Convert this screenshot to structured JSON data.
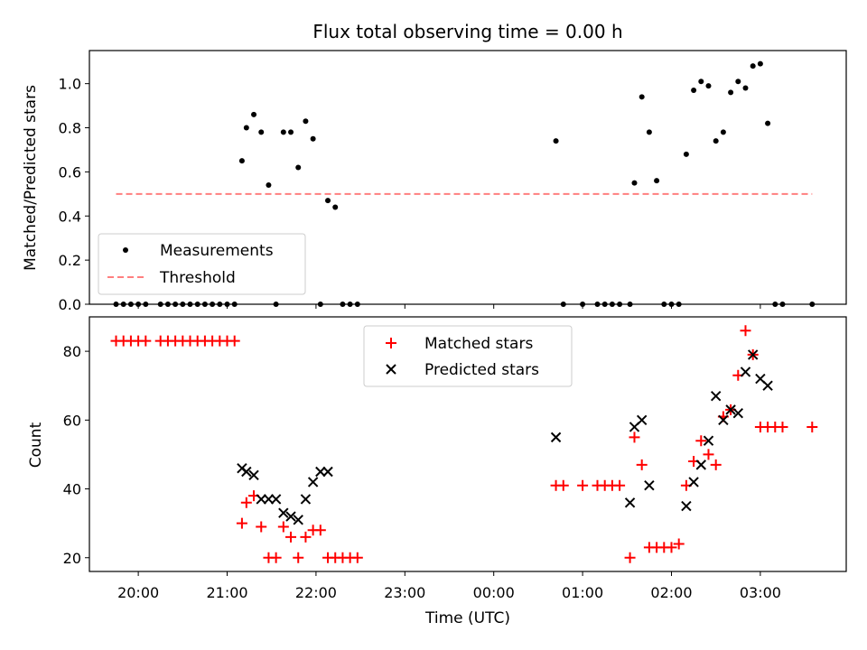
{
  "chart_data": [
    {
      "type": "scatter",
      "title": "Flux total observing time = 0.00 h",
      "xlabel": "",
      "ylabel": "Matched/Predicted stars",
      "xlim": [
        "19:27",
        "03:58"
      ],
      "ylim": [
        0,
        1.15
      ],
      "yticks": [
        "0.0",
        "0.2",
        "0.4",
        "0.6",
        "0.8",
        "1.0"
      ],
      "legend": {
        "position": "lower-left",
        "entries": [
          "Measurements",
          "Threshold"
        ]
      },
      "colors": {
        "measurements": "#000000",
        "threshold": "#ff7f7f"
      },
      "series": [
        {
          "name": "Measurements",
          "x": [
            "19:45",
            "19:50",
            "19:55",
            "20:00",
            "20:05",
            "20:15",
            "20:20",
            "20:25",
            "20:30",
            "20:35",
            "20:40",
            "20:45",
            "20:50",
            "20:55",
            "21:00",
            "21:05",
            "21:10",
            "21:13",
            "21:18",
            "21:23",
            "21:28",
            "21:33",
            "21:38",
            "21:43",
            "21:48",
            "21:53",
            "21:58",
            "22:03",
            "22:08",
            "22:13",
            "22:18",
            "22:23",
            "22:28",
            "00:42",
            "00:47",
            "01:00",
            "01:10",
            "01:15",
            "01:20",
            "01:25",
            "01:32",
            "01:35",
            "01:40",
            "01:45",
            "01:50",
            "01:55",
            "02:00",
            "02:05",
            "02:10",
            "02:15",
            "02:20",
            "02:25",
            "02:30",
            "02:35",
            "02:40",
            "02:45",
            "02:50",
            "02:55",
            "03:00",
            "03:05",
            "03:10",
            "03:15",
            "03:35"
          ],
          "y": [
            0,
            0,
            0,
            0,
            0,
            0,
            0,
            0,
            0,
            0,
            0,
            0,
            0,
            0,
            0,
            0,
            0.65,
            0.8,
            0.86,
            0.78,
            0.54,
            0,
            0.78,
            0.78,
            0.62,
            0.83,
            0.75,
            0,
            0.47,
            0.44,
            0,
            0,
            0,
            0.74,
            0,
            0,
            0,
            0,
            0,
            0,
            0,
            0.55,
            0.94,
            0.78,
            0.56,
            0,
            0,
            0,
            0.68,
            0.97,
            1.01,
            0.99,
            0.74,
            0.78,
            0.96,
            1.01,
            0.98,
            1.08,
            1.09,
            0.82,
            0,
            0,
            0
          ]
        },
        {
          "name": "Threshold",
          "x": [
            "19:45",
            "03:35"
          ],
          "y": [
            0.5,
            0.5
          ]
        }
      ]
    },
    {
      "type": "scatter",
      "title": "",
      "xlabel": "Time (UTC)",
      "ylabel": "Count",
      "xlim": [
        "19:27",
        "03:58"
      ],
      "ylim": [
        16,
        90
      ],
      "yticks": [
        "20",
        "40",
        "60",
        "80"
      ],
      "xticks": [
        "20:00",
        "21:00",
        "22:00",
        "23:00",
        "00:00",
        "01:00",
        "02:00",
        "03:00"
      ],
      "legend": {
        "position": "upper-center",
        "entries": [
          "Matched stars",
          "Predicted stars"
        ]
      },
      "colors": {
        "matched": "#ff0000",
        "predicted": "#000000"
      },
      "series": [
        {
          "name": "Matched stars",
          "x": [
            "19:45",
            "19:50",
            "19:55",
            "20:00",
            "20:05",
            "20:15",
            "20:20",
            "20:25",
            "20:30",
            "20:35",
            "20:40",
            "20:45",
            "20:50",
            "20:55",
            "21:00",
            "21:05",
            "21:10",
            "21:13",
            "21:18",
            "21:23",
            "21:28",
            "21:33",
            "21:38",
            "21:43",
            "21:48",
            "21:53",
            "21:58",
            "22:03",
            "22:08",
            "22:13",
            "22:18",
            "22:23",
            "22:28",
            "00:42",
            "00:47",
            "01:00",
            "01:10",
            "01:15",
            "01:20",
            "01:25",
            "01:32",
            "01:35",
            "01:40",
            "01:45",
            "01:50",
            "01:55",
            "02:00",
            "02:05",
            "02:10",
            "02:15",
            "02:20",
            "02:25",
            "02:30",
            "02:35",
            "02:40",
            "02:45",
            "02:50",
            "02:55",
            "03:00",
            "03:05",
            "03:10",
            "03:15",
            "03:35"
          ],
          "y": [
            83,
            83,
            83,
            83,
            83,
            83,
            83,
            83,
            83,
            83,
            83,
            83,
            83,
            83,
            83,
            83,
            30,
            36,
            38,
            29,
            20,
            20,
            29,
            26,
            20,
            26,
            28,
            28,
            20,
            20,
            20,
            20,
            20,
            41,
            41,
            41,
            41,
            41,
            41,
            41,
            20,
            55,
            47,
            23,
            23,
            23,
            23,
            24,
            41,
            48,
            54,
            50,
            47,
            61,
            63,
            73,
            86,
            79,
            58,
            58,
            58,
            58,
            58
          ]
        },
        {
          "name": "Predicted stars",
          "x": [
            "21:10",
            "21:13",
            "21:18",
            "21:23",
            "21:28",
            "21:33",
            "21:38",
            "21:43",
            "21:48",
            "21:53",
            "21:58",
            "22:03",
            "22:08",
            "00:42",
            "01:32",
            "01:35",
            "01:40",
            "01:45",
            "02:10",
            "02:15",
            "02:20",
            "02:25",
            "02:30",
            "02:35",
            "02:40",
            "02:45",
            "02:50",
            "02:55",
            "03:00",
            "03:05"
          ],
          "y": [
            46,
            45,
            44,
            37,
            37,
            37,
            33,
            32,
            31,
            37,
            42,
            45,
            45,
            55,
            36,
            58,
            60,
            41,
            35,
            42,
            47,
            54,
            67,
            60,
            63,
            62,
            74,
            79,
            72,
            70
          ]
        }
      ]
    }
  ]
}
